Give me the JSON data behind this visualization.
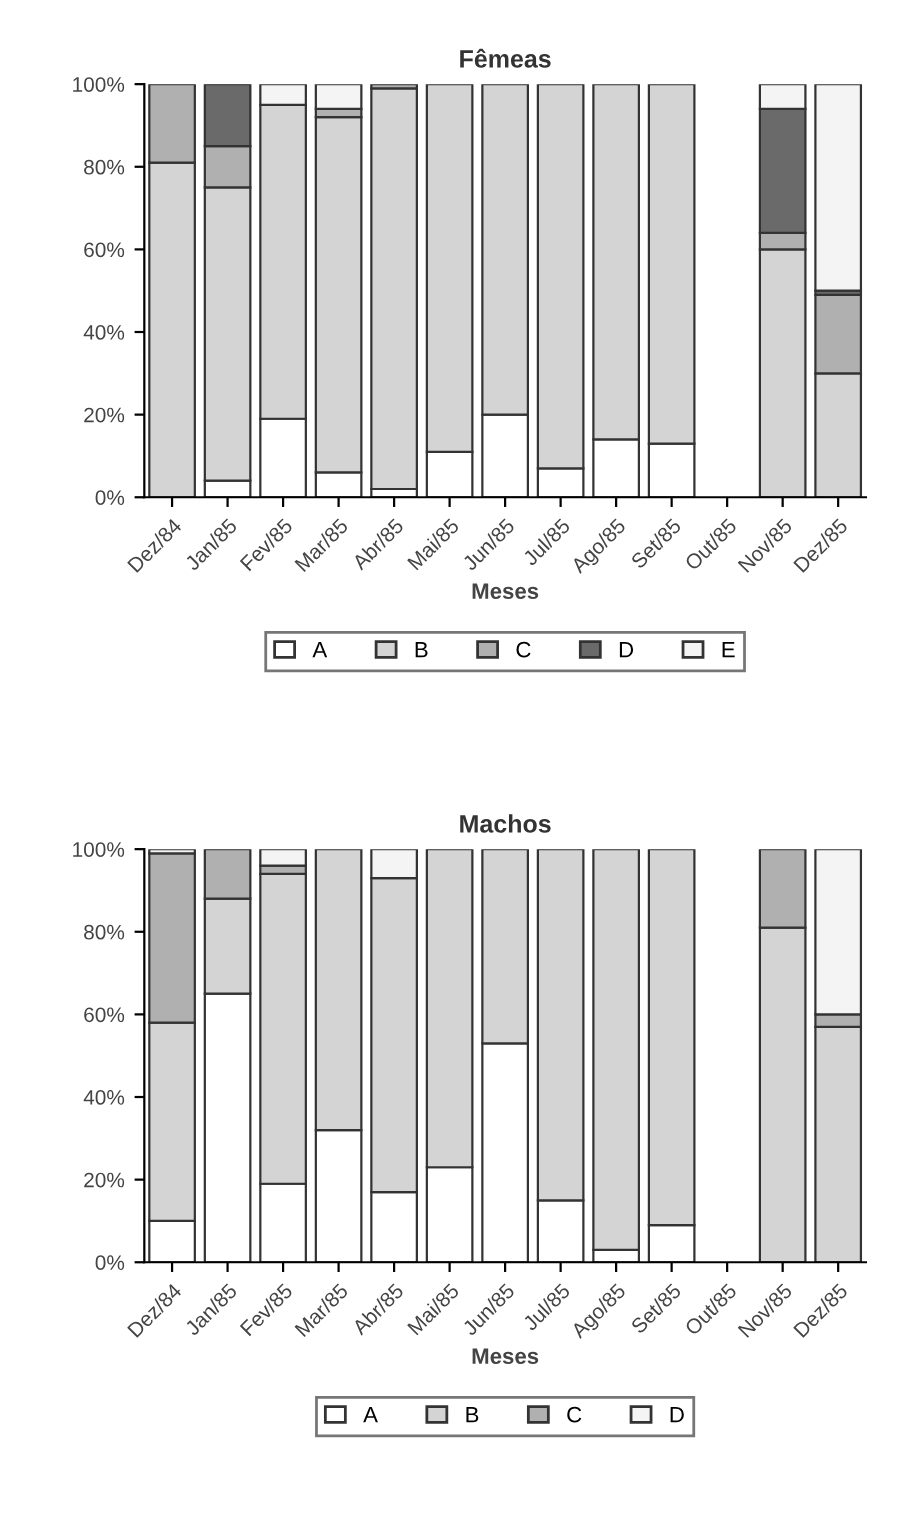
{
  "chart_data": [
    {
      "type": "bar",
      "title": "Fêmeas",
      "xlabel": "Meses",
      "stacked": true,
      "legend": "bottom",
      "grid": false,
      "categories": [
        "Dez/84",
        "Jan/85",
        "Fev/85",
        "Mar/85",
        "Abr/85",
        "Mai/85",
        "Jun/85",
        "Jul/85",
        "Ago/85",
        "Set/85",
        "Out/85",
        "Nov/85",
        "Dez/85"
      ],
      "ylim": [
        0,
        100
      ],
      "yticks": [
        {
          "value": 0,
          "label": "0%"
        },
        {
          "value": 20,
          "label": "20%"
        },
        {
          "value": 40,
          "label": "40%"
        },
        {
          "value": 60,
          "label": "60%"
        },
        {
          "value": 80,
          "label": "80%"
        },
        {
          "value": 100,
          "label": "100%"
        }
      ],
      "series": [
        {
          "name": "A",
          "color": "#ffffff",
          "values": [
            0,
            4,
            19,
            6,
            2,
            11,
            20,
            7,
            14,
            13,
            null,
            0,
            0
          ]
        },
        {
          "name": "B",
          "color": "#d4d4d4",
          "values": [
            81,
            71,
            76,
            86,
            97,
            89,
            80,
            93,
            86,
            87,
            null,
            60,
            30
          ]
        },
        {
          "name": "C",
          "color": "#b0b0b0",
          "values": [
            19,
            10,
            0,
            2,
            1,
            0,
            0,
            0,
            0,
            0,
            null,
            4,
            19
          ]
        },
        {
          "name": "D",
          "color": "#6a6a6a",
          "values": [
            0,
            15,
            0,
            0,
            0,
            0,
            0,
            0,
            0,
            0,
            null,
            30,
            1
          ]
        },
        {
          "name": "E",
          "color": "#f4f4f4",
          "values": [
            0,
            0,
            5,
            6,
            0,
            0,
            0,
            0,
            0,
            0,
            null,
            6,
            50
          ]
        }
      ]
    },
    {
      "type": "bar",
      "title": "Machos",
      "xlabel": "Meses",
      "stacked": true,
      "legend": "bottom",
      "grid": false,
      "categories": [
        "Dez/84",
        "Jan/85",
        "Fev/85",
        "Mar/85",
        "Abr/85",
        "Mai/85",
        "Jun/85",
        "Jul/85",
        "Ago/85",
        "Set/85",
        "Out/85",
        "Nov/85",
        "Dez/85"
      ],
      "ylim": [
        0,
        100
      ],
      "yticks": [
        {
          "value": 0,
          "label": "0%"
        },
        {
          "value": 20,
          "label": "20%"
        },
        {
          "value": 40,
          "label": "40%"
        },
        {
          "value": 60,
          "label": "60%"
        },
        {
          "value": 80,
          "label": "80%"
        },
        {
          "value": 100,
          "label": "100%"
        }
      ],
      "series": [
        {
          "name": "A",
          "color": "#ffffff",
          "values": [
            10,
            65,
            19,
            32,
            17,
            23,
            53,
            15,
            3,
            9,
            null,
            0,
            0
          ]
        },
        {
          "name": "B",
          "color": "#d4d4d4",
          "values": [
            48,
            23,
            75,
            68,
            76,
            77,
            47,
            85,
            97,
            91,
            null,
            81,
            57
          ]
        },
        {
          "name": "C",
          "color": "#b0b0b0",
          "values": [
            41,
            12,
            2,
            0,
            0,
            0,
            0,
            0,
            0,
            0,
            null,
            19,
            3
          ]
        },
        {
          "name": "D",
          "color": "#f4f4f4",
          "values": [
            1,
            0,
            4,
            0,
            7,
            0,
            0,
            0,
            0,
            0,
            null,
            0,
            40
          ]
        }
      ]
    }
  ]
}
